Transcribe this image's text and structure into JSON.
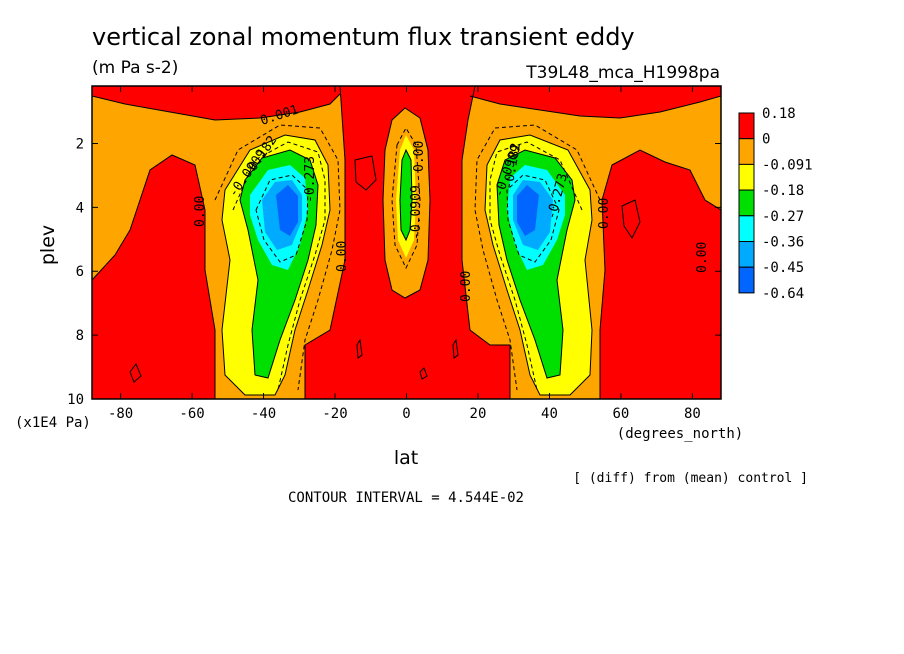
{
  "chart_data": {
    "type": "contour",
    "title": "vertical zonal momentum flux transient eddy",
    "units": "(m Pa s-2)",
    "experiment": "T39L48_mca_H1998pa",
    "xlabel": "lat",
    "xunit": "(degrees_north)",
    "ylabel": "plev",
    "yunit": "(x1E4 Pa)",
    "xlim": [
      -88,
      88
    ],
    "ylim": [
      10,
      0.2
    ],
    "x_ticks": [
      "-80",
      "-60",
      "-40",
      "-20",
      "0",
      "20",
      "40",
      "60",
      "80"
    ],
    "y_ticks": [
      "2",
      "4",
      "6",
      "8",
      "10"
    ],
    "colorbar": {
      "levels": [
        "0.18",
        "0",
        "-0.091",
        "-0.18",
        "-0.27",
        "-0.36",
        "-0.45",
        "-0.64"
      ],
      "colors": [
        "#ff0000",
        "#ffa500",
        "#ffff00",
        "#00e000",
        "#00ffff",
        "#00aaff",
        "#0066ff"
      ]
    },
    "contour_labels": [
      "0.001",
      "-0.0909",
      "-0.182",
      "-0.273",
      "0.00",
      "0.00",
      "0.00",
      "-0.0909",
      "0.00",
      "-0.0909",
      "-0.273",
      "-0.182",
      "0.00",
      "0.00"
    ],
    "minima": [
      {
        "lat": -33,
        "plev": 4.0,
        "value": -0.64
      },
      {
        "lat": 33,
        "plev": 4.0,
        "value": -0.64
      },
      {
        "lat": 0,
        "plev": 3.5,
        "value": -0.27
      }
    ],
    "footer_note": "[ (diff) from (mean) control ]",
    "contour_interval": "CONTOUR INTERVAL = 4.544E-02"
  }
}
